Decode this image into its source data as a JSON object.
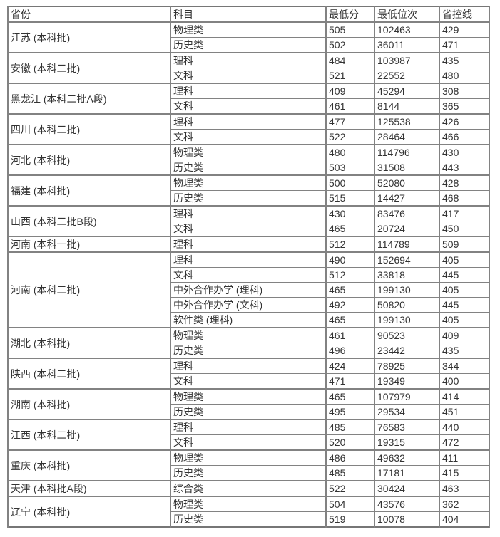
{
  "table": {
    "name": "admission-scores-by-province",
    "headers": {
      "province": "省份",
      "subject": "科目",
      "min_score": "最低分",
      "min_rank": "最低位次",
      "control_line": "省控线"
    },
    "groups": [
      {
        "province": "江苏 (本科批)",
        "rows": [
          {
            "subject": "物理类",
            "min_score": "505",
            "min_rank": "102463",
            "control_line": "429"
          },
          {
            "subject": "历史类",
            "min_score": "502",
            "min_rank": "36011",
            "control_line": "471"
          }
        ]
      },
      {
        "province": "安徽 (本科二批)",
        "rows": [
          {
            "subject": "理科",
            "min_score": "484",
            "min_rank": "103987",
            "control_line": "435"
          },
          {
            "subject": "文科",
            "min_score": "521",
            "min_rank": "22552",
            "control_line": "480"
          }
        ]
      },
      {
        "province": "黑龙江 (本科二批A段)",
        "rows": [
          {
            "subject": "理科",
            "min_score": "409",
            "min_rank": "45294",
            "control_line": "308"
          },
          {
            "subject": "文科",
            "min_score": "461",
            "min_rank": "8144",
            "control_line": "365"
          }
        ]
      },
      {
        "province": "四川 (本科二批)",
        "rows": [
          {
            "subject": "理科",
            "min_score": "477",
            "min_rank": "125538",
            "control_line": "426"
          },
          {
            "subject": "文科",
            "min_score": "522",
            "min_rank": "28464",
            "control_line": "466"
          }
        ]
      },
      {
        "province": "河北 (本科批)",
        "rows": [
          {
            "subject": "物理类",
            "min_score": "480",
            "min_rank": "114796",
            "control_line": "430"
          },
          {
            "subject": "历史类",
            "min_score": "503",
            "min_rank": "31508",
            "control_line": "443"
          }
        ]
      },
      {
        "province": "福建 (本科批)",
        "rows": [
          {
            "subject": "物理类",
            "min_score": "500",
            "min_rank": "52080",
            "control_line": "428"
          },
          {
            "subject": "历史类",
            "min_score": "515",
            "min_rank": "14427",
            "control_line": "468"
          }
        ]
      },
      {
        "province": "山西 (本科二批B段)",
        "rows": [
          {
            "subject": "理科",
            "min_score": "430",
            "min_rank": "83476",
            "control_line": "417"
          },
          {
            "subject": "文科",
            "min_score": "465",
            "min_rank": "20724",
            "control_line": "450"
          }
        ]
      },
      {
        "province": "河南 (本科一批)",
        "rows": [
          {
            "subject": "理科",
            "min_score": "512",
            "min_rank": "114789",
            "control_line": "509"
          }
        ]
      },
      {
        "province": "河南 (本科二批)",
        "rows": [
          {
            "subject": "理科",
            "min_score": "490",
            "min_rank": "152694",
            "control_line": "405"
          },
          {
            "subject": "文科",
            "min_score": "512",
            "min_rank": "33818",
            "control_line": "445"
          },
          {
            "subject": "中外合作办学 (理科)",
            "min_score": "465",
            "min_rank": "199130",
            "control_line": "405"
          },
          {
            "subject": "中外合作办学 (文科)",
            "min_score": "492",
            "min_rank": "50820",
            "control_line": "445"
          },
          {
            "subject": "软件类 (理科)",
            "min_score": "465",
            "min_rank": "199130",
            "control_line": "405"
          }
        ]
      },
      {
        "province": "湖北 (本科批)",
        "rows": [
          {
            "subject": "物理类",
            "min_score": "461",
            "min_rank": "90523",
            "control_line": "409"
          },
          {
            "subject": "历史类",
            "min_score": "496",
            "min_rank": "23442",
            "control_line": "435"
          }
        ]
      },
      {
        "province": "陕西 (本科二批)",
        "rows": [
          {
            "subject": "理科",
            "min_score": "424",
            "min_rank": "78925",
            "control_line": "344"
          },
          {
            "subject": "文科",
            "min_score": "471",
            "min_rank": "19349",
            "control_line": "400"
          }
        ]
      },
      {
        "province": "湖南 (本科批)",
        "rows": [
          {
            "subject": "物理类",
            "min_score": "465",
            "min_rank": "107979",
            "control_line": "414"
          },
          {
            "subject": "历史类",
            "min_score": "495",
            "min_rank": "29534",
            "control_line": "451"
          }
        ]
      },
      {
        "province": "江西 (本科二批)",
        "rows": [
          {
            "subject": "理科",
            "min_score": "485",
            "min_rank": "76583",
            "control_line": "440"
          },
          {
            "subject": "文科",
            "min_score": "520",
            "min_rank": "19315",
            "control_line": "472"
          }
        ]
      },
      {
        "province": "重庆 (本科批)",
        "rows": [
          {
            "subject": "物理类",
            "min_score": "486",
            "min_rank": "49632",
            "control_line": "411"
          },
          {
            "subject": "历史类",
            "min_score": "485",
            "min_rank": "17181",
            "control_line": "415"
          }
        ]
      },
      {
        "province": "天津 (本科批A段)",
        "rows": [
          {
            "subject": "综合类",
            "min_score": "522",
            "min_rank": "30424",
            "control_line": "463"
          }
        ]
      },
      {
        "province": "辽宁 (本科批)",
        "rows": [
          {
            "subject": "物理类",
            "min_score": "504",
            "min_rank": "43576",
            "control_line": "362"
          },
          {
            "subject": "历史类",
            "min_score": "519",
            "min_rank": "10078",
            "control_line": "404"
          }
        ]
      }
    ],
    "colors": {
      "text": "#333333",
      "border_inner": "#828282",
      "border_outer": "#767676",
      "background": "#ffffff"
    }
  }
}
